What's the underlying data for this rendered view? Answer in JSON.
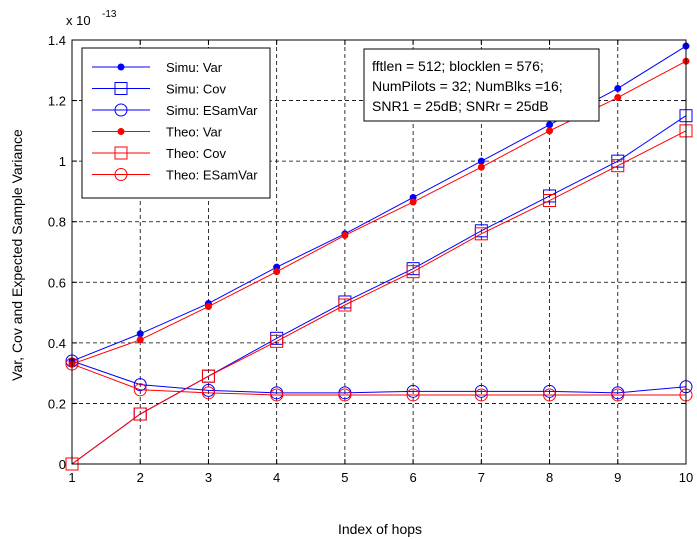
{
  "chart_data": {
    "type": "line",
    "title": "",
    "xlabel": "Index of hops",
    "ylabel": "Var, Cov and Expected Sample Variance",
    "y_exponent_label": "x 10",
    "y_exponent_power": "-13",
    "xlim": [
      1,
      10
    ],
    "ylim": [
      0,
      1.4
    ],
    "x_ticks": [
      "1",
      "2",
      "3",
      "4",
      "5",
      "6",
      "7",
      "8",
      "9",
      "10"
    ],
    "y_ticks": [
      "0",
      "0.2",
      "0.4",
      "0.6",
      "0.8",
      "1",
      "1.2",
      "1.4"
    ],
    "grid": true,
    "legend_position": "top-left",
    "x": [
      1,
      2,
      3,
      4,
      5,
      6,
      7,
      8,
      9,
      10
    ],
    "series": [
      {
        "name": "Simu: Var",
        "color": "#0000ff",
        "marker": "dot",
        "values": [
          0.34,
          0.43,
          0.53,
          0.65,
          0.76,
          0.88,
          1.0,
          1.12,
          1.24,
          1.38
        ]
      },
      {
        "name": "Simu: Cov",
        "color": "#0000ff",
        "marker": "square",
        "values": [
          0.0,
          0.165,
          0.29,
          0.415,
          0.535,
          0.645,
          0.77,
          0.885,
          1.0,
          1.15
        ]
      },
      {
        "name": "Simu: ESamVar",
        "color": "#0000ff",
        "marker": "circle",
        "values": [
          0.34,
          0.262,
          0.243,
          0.235,
          0.235,
          0.24,
          0.24,
          0.24,
          0.235,
          0.255
        ]
      },
      {
        "name": "Theo: Var",
        "color": "#ff0000",
        "marker": "dot",
        "values": [
          0.33,
          0.41,
          0.52,
          0.635,
          0.755,
          0.865,
          0.98,
          1.1,
          1.21,
          1.33
        ]
      },
      {
        "name": "Theo: Cov",
        "color": "#ff0000",
        "marker": "square",
        "values": [
          0.0,
          0.165,
          0.29,
          0.405,
          0.525,
          0.635,
          0.76,
          0.87,
          0.985,
          1.1
        ]
      },
      {
        "name": "Theo: ESamVar",
        "color": "#ff0000",
        "marker": "circle",
        "values": [
          0.33,
          0.245,
          0.235,
          0.228,
          0.228,
          0.228,
          0.228,
          0.228,
          0.228,
          0.228
        ]
      }
    ],
    "annotation_lines": [
      "fftlen = 512; blocklen = 576;",
      "NumPilots = 32; NumBlks =16;",
      "SNR1 = 25dB; SNRr = 25dB"
    ]
  }
}
